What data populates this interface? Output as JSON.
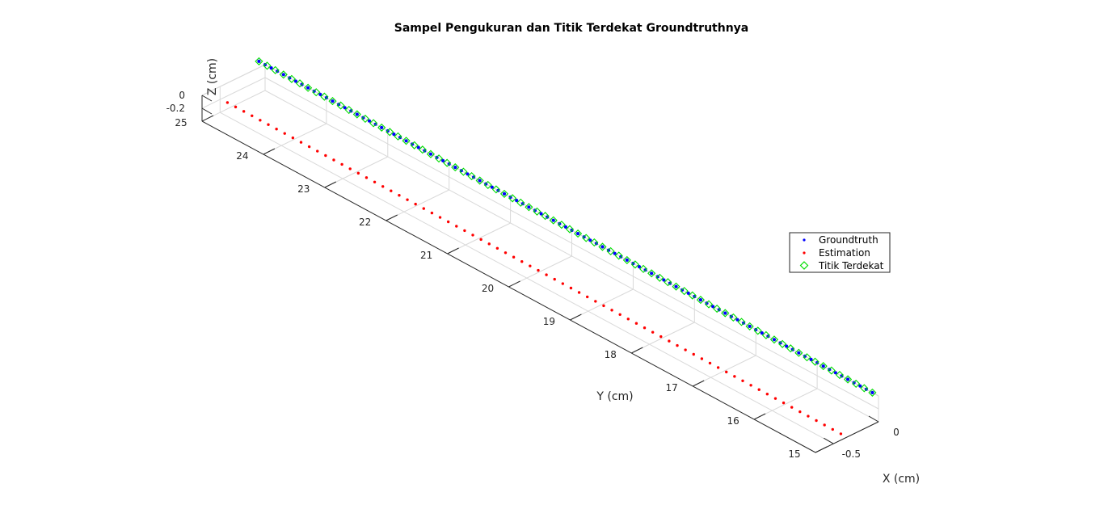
{
  "chart_data": {
    "type": "scatter",
    "title": "Sampel Pengukuran dan Titik Terdekat Groundtruthnya",
    "xlabel": "X (cm)",
    "ylabel": "Y (cm)",
    "zlabel": "Z (cm)",
    "xlim": [
      -0.7,
      0
    ],
    "ylim": [
      15,
      25
    ],
    "zlim": [
      -0.4,
      0
    ],
    "x_ticks": [
      "0",
      "-0.5"
    ],
    "y_ticks": [
      "15",
      "16",
      "17",
      "18",
      "19",
      "20",
      "21",
      "22",
      "23",
      "24",
      "25"
    ],
    "z_ticks": [
      "0",
      "-0.2"
    ],
    "grid": true,
    "legend_position": "right",
    "series": [
      {
        "name": "Groundtruth",
        "marker": "dot",
        "color": "#0000ff",
        "x": 0,
        "z": 0,
        "y_start": 15.1,
        "y_end": 25.1,
        "count": 101
      },
      {
        "name": "Estimation",
        "marker": "dot",
        "color": "#ff0000",
        "x": -0.35,
        "z": -0.4,
        "y_start": 15.1,
        "y_end": 25.1,
        "count": 76
      },
      {
        "name": "Titik Terdekat",
        "marker": "diamond",
        "color": "#00dd00",
        "x": 0,
        "z": 0,
        "y_start": 15.1,
        "y_end": 25.1,
        "count": 76
      }
    ]
  }
}
